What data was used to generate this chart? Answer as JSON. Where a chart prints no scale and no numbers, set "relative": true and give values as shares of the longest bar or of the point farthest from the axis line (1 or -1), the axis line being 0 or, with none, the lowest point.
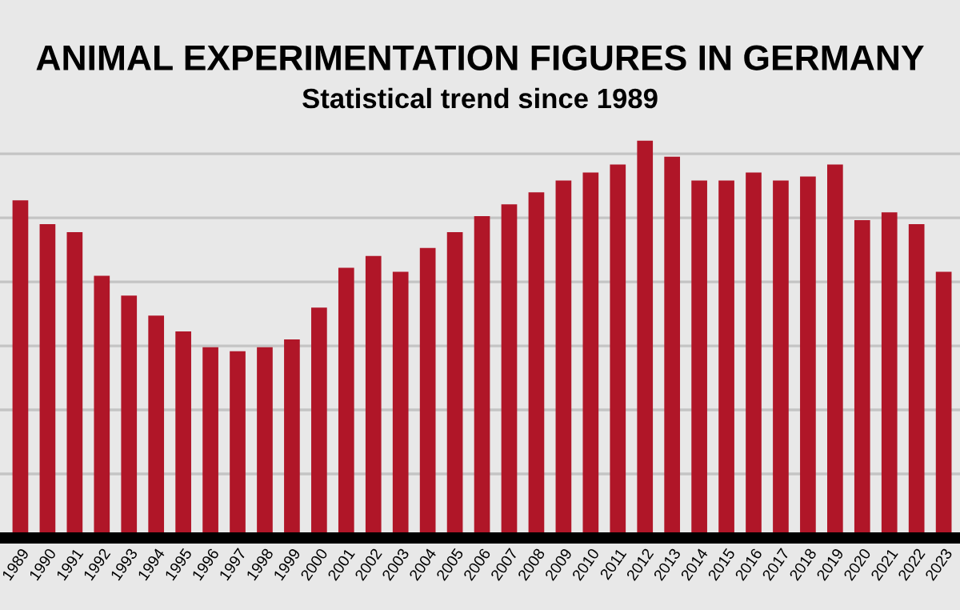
{
  "chart_data": {
    "type": "bar",
    "title": "ANIMAL EXPERIMENTATION FIGURES IN GERMANY",
    "subtitle": "Statistical trend since 1989",
    "categories": [
      "1989",
      "1990",
      "1991",
      "1992",
      "1993",
      "1994",
      "1995",
      "1996",
      "1997",
      "1998",
      "1999",
      "2000",
      "2001",
      "2002",
      "2003",
      "2004",
      "2005",
      "2006",
      "2007",
      "2008",
      "2009",
      "2010",
      "2011",
      "2012",
      "2013",
      "2014",
      "2015",
      "2016",
      "2017",
      "2018",
      "2019",
      "2020",
      "2021",
      "2022",
      "2023"
    ],
    "values": [
      0.85,
      0.79,
      0.77,
      0.66,
      0.61,
      0.56,
      0.52,
      0.48,
      0.47,
      0.48,
      0.5,
      0.58,
      0.68,
      0.71,
      0.67,
      0.73,
      0.77,
      0.81,
      0.84,
      0.87,
      0.9,
      0.92,
      0.94,
      1,
      0.96,
      0.9,
      0.9,
      0.92,
      0.9,
      0.91,
      0.94,
      0.8,
      0.82,
      0.79,
      0.67
    ],
    "color": "#b01628",
    "relative": true,
    "grid": "y",
    "legend": false
  }
}
